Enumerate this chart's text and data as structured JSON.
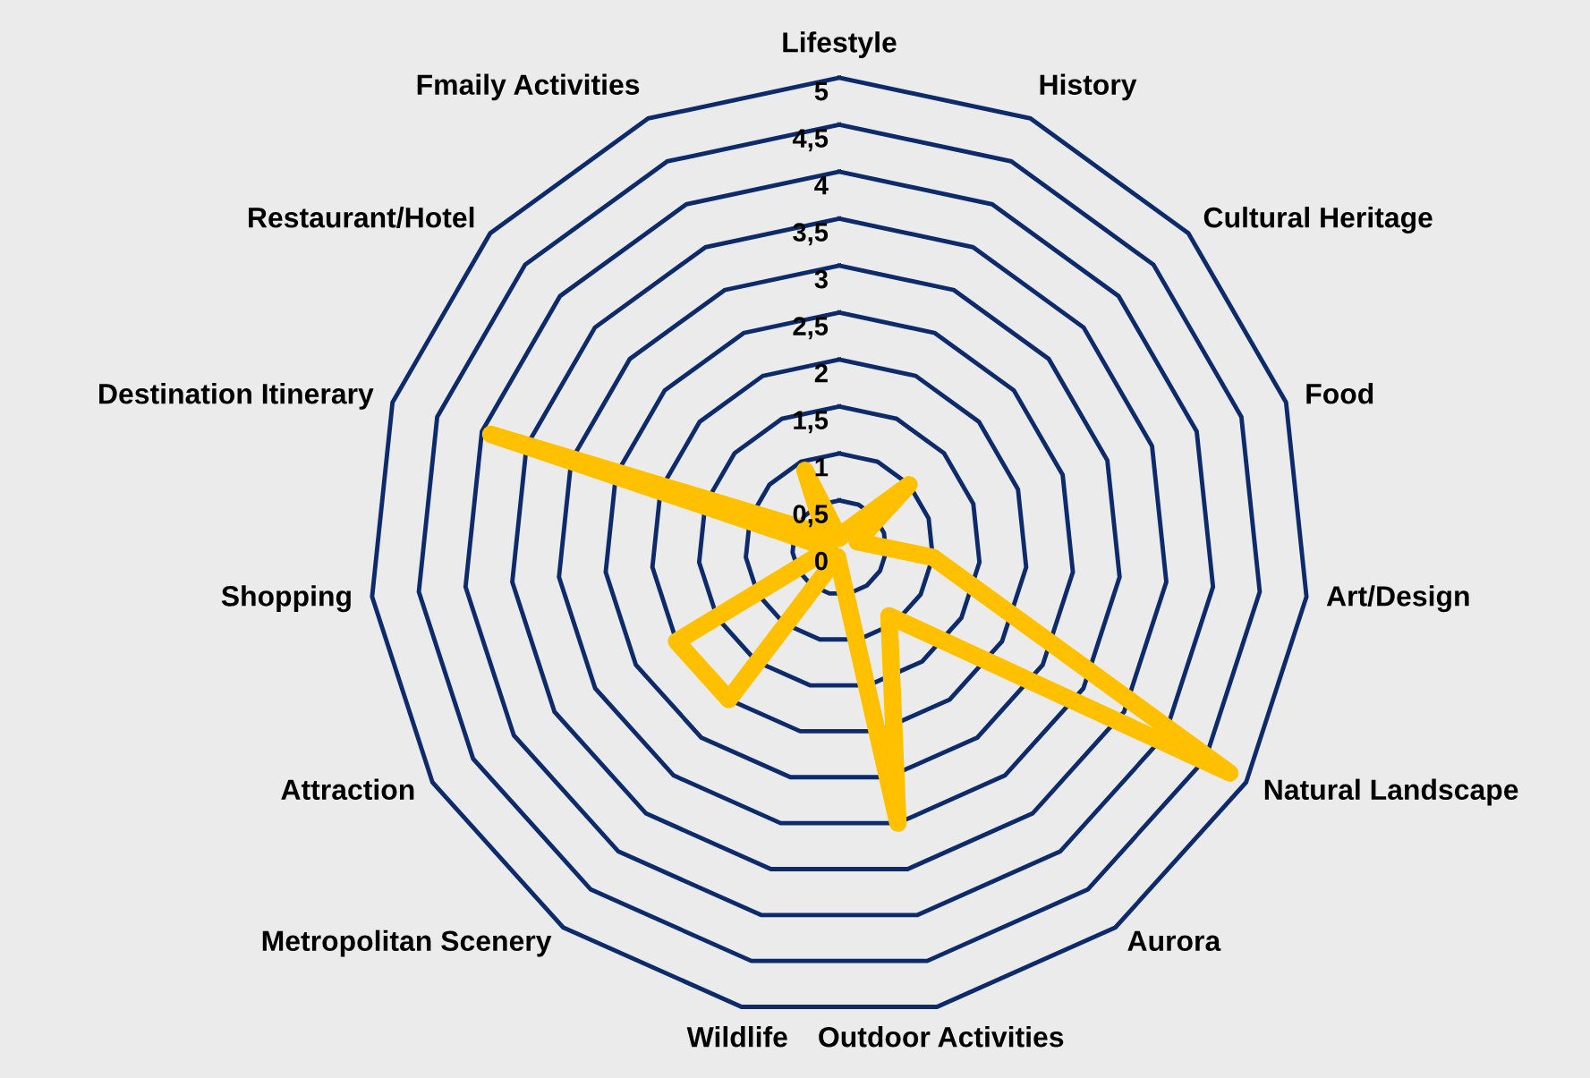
{
  "chart_data": {
    "type": "radar",
    "categories": [
      "Lifestyle",
      "History",
      "Cultural Heritage",
      "Food",
      "Art/Design",
      "Natural Landscape",
      "Aurora",
      "Outdoor Activities",
      "Wildlife",
      "Metropolitan Scenery",
      "Attraction",
      "Shopping",
      "Destination Itinerary",
      "Restaurant/Hotel",
      "Fmaily Activities"
    ],
    "series": [
      {
        "color": "#ffc000",
        "values": [
          0.1,
          0.2,
          1.0,
          0.2,
          1.0,
          4.8,
          0.9,
          3.0,
          0.1,
          2.0,
          2.0,
          0.1,
          3.9,
          0.2,
          0.9
        ]
      }
    ],
    "ylim": [
      0,
      5
    ],
    "yticks": [
      0,
      {
        "value": 0.5,
        "label": "0,5"
      },
      1,
      {
        "value": 1.5,
        "label": "1,5"
      },
      2,
      {
        "value": 2.5,
        "label": "2,5"
      },
      3,
      {
        "value": 3.5,
        "label": "3,5"
      },
      4,
      {
        "value": 4.5,
        "label": "4,5"
      },
      5
    ],
    "grid": true
  }
}
